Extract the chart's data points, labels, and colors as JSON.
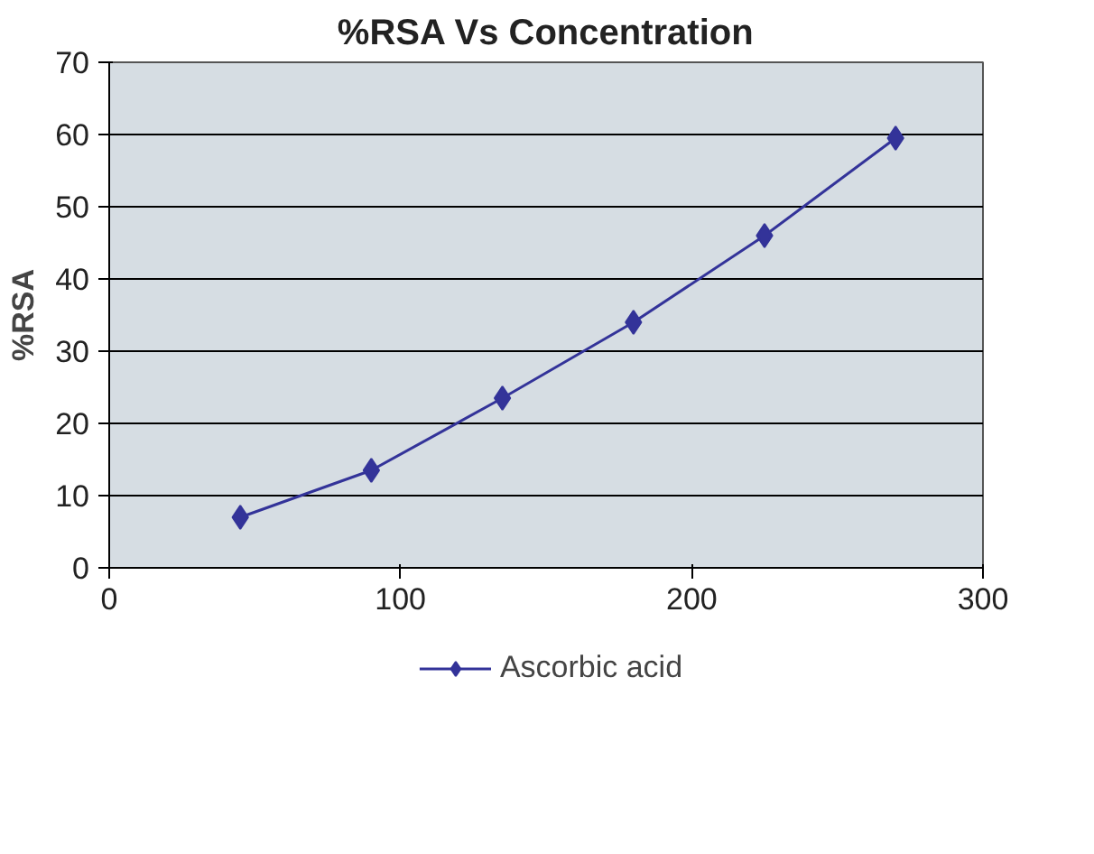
{
  "chart_data": {
    "type": "line",
    "title": "%RSA Vs Concentration",
    "ylabel": "%RSA",
    "x": [
      45,
      90,
      135,
      180,
      225,
      270
    ],
    "series": [
      {
        "name": "Ascorbic acid",
        "color": "#333399",
        "values": [
          7,
          13.5,
          23.5,
          34,
          46,
          59.5
        ]
      }
    ],
    "xlim": [
      0,
      300
    ],
    "xticks": [
      0,
      100,
      200,
      300
    ],
    "ylim": [
      0,
      70
    ],
    "yticks": [
      0,
      10,
      20,
      30,
      40,
      50,
      60,
      70
    ],
    "grid": "y",
    "legend": "bottom",
    "marker": "diamond",
    "line_style": "solid"
  }
}
